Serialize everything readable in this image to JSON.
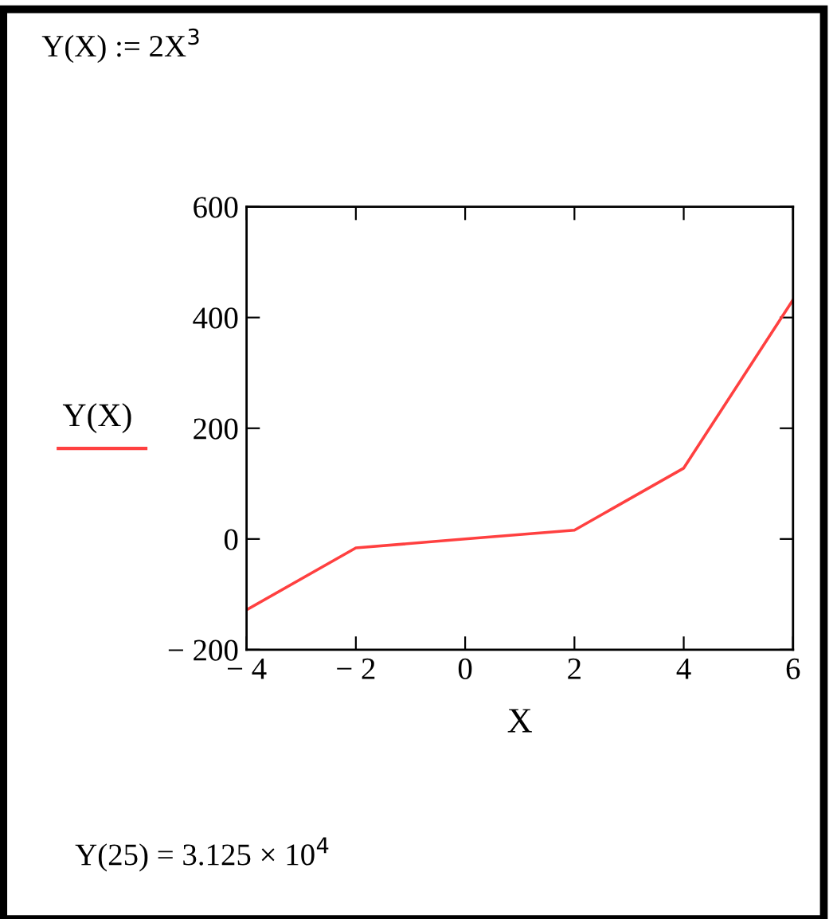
{
  "chart_data": {
    "type": "line",
    "xlabel": "X",
    "annotations": [
      "Y(X) := 2X$^{3}$",
      "Y(25) = 3.125 × 10$^{4}$"
    ],
    "x": [
      -4,
      -2,
      0,
      2,
      4,
      6
    ],
    "series": [
      {
        "name": "Y(X)",
        "color": "#ff4040",
        "values": [
          -128,
          -16,
          0,
          16,
          128,
          432
        ]
      }
    ],
    "xlim": [
      -4,
      6
    ],
    "ylim": [
      -200,
      600
    ],
    "xticks": [
      {
        "value": -4,
        "label": "− 4"
      },
      {
        "value": -2,
        "label": "− 2"
      },
      0,
      2,
      4,
      6
    ],
    "yticks": [
      {
        "value": -200,
        "label": "− 200"
      },
      0,
      200,
      400,
      600
    ],
    "grid": false,
    "legend": "left"
  }
}
